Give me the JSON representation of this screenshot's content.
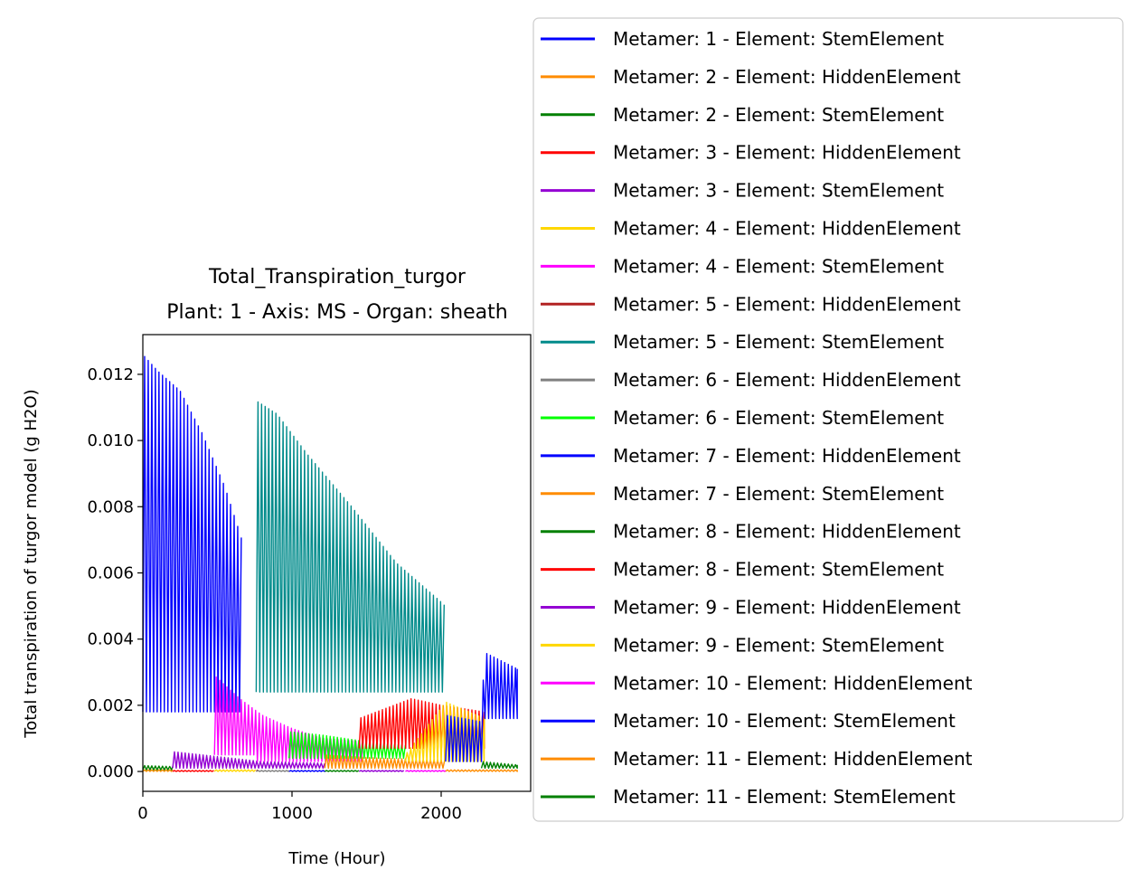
{
  "chart_data": {
    "type": "line",
    "title": "Total_Transpiration_turgor",
    "subtitle": "Plant: 1 - Axis: MS - Organ: sheath",
    "xlabel": "Time (Hour)",
    "ylabel": "Total transpiration of turgor model (g H2O)",
    "xlim": [
      0,
      2600
    ],
    "ylim": [
      -0.0006,
      0.0132
    ],
    "xticks": [
      0,
      1000,
      2000
    ],
    "xtick_labels": [
      "0",
      "1000",
      "2000"
    ],
    "yticks": [
      0.0,
      0.002,
      0.004,
      0.006,
      0.008,
      0.01,
      0.012
    ],
    "ytick_labels": [
      "0.000",
      "0.002",
      "0.004",
      "0.006",
      "0.008",
      "0.010",
      "0.012"
    ],
    "grid": false,
    "legend_position": "right of plot",
    "series": [
      {
        "name": "Metamer: 1 - Element: StemElement",
        "color": "#0000ff",
        "range": [
          0,
          665
        ],
        "night": [
          [
            0,
            0.0018
          ],
          [
            665,
            0.0018
          ]
        ],
        "day": [
          [
            0,
            0.0126
          ],
          [
            100,
            0.0121
          ],
          [
            250,
            0.0115
          ],
          [
            400,
            0.0102
          ],
          [
            550,
            0.0086
          ],
          [
            665,
            0.007
          ]
        ]
      },
      {
        "name": "Metamer: 2 - Element: HiddenElement",
        "color": "#ff8c00",
        "range": [
          0,
          200
        ],
        "night": [
          [
            0,
            0.0
          ],
          [
            200,
            0.0
          ]
        ],
        "day": [
          [
            0,
            5e-05
          ],
          [
            200,
            5e-05
          ]
        ]
      },
      {
        "name": "Metamer: 2 - Element: StemElement",
        "color": "#008000",
        "range": [
          0,
          200
        ],
        "night": [
          [
            0,
            5e-05
          ],
          [
            200,
            5e-05
          ]
        ],
        "day": [
          [
            0,
            0.00018
          ],
          [
            200,
            0.00015
          ]
        ]
      },
      {
        "name": "Metamer: 3 - Element: HiddenElement",
        "color": "#ff0000",
        "range": [
          200,
          480
        ],
        "night": [
          [
            200,
            0.0
          ],
          [
            480,
            0.0
          ]
        ],
        "day": [
          [
            200,
            3e-05
          ],
          [
            480,
            3e-05
          ]
        ]
      },
      {
        "name": "Metamer: 3 - Element: StemElement",
        "color": "#9400d3",
        "range": [
          200,
          1220
        ],
        "night": [
          [
            200,
            0.0001
          ],
          [
            1220,
            0.0001
          ]
        ],
        "day": [
          [
            200,
            0.0006
          ],
          [
            500,
            0.00045
          ],
          [
            800,
            0.0003
          ],
          [
            1220,
            0.00025
          ]
        ]
      },
      {
        "name": "Metamer: 4 - Element: HiddenElement",
        "color": "#ffd700",
        "range": [
          480,
          760
        ],
        "night": [
          [
            480,
            0.0
          ],
          [
            760,
            0.0
          ]
        ],
        "day": [
          [
            480,
            5e-05
          ],
          [
            760,
            5e-05
          ]
        ]
      },
      {
        "name": "Metamer: 4 - Element: StemElement",
        "color": "#ff00ff",
        "range": [
          480,
          1480
        ],
        "night": [
          [
            480,
            0.0005
          ],
          [
            760,
            0.0005
          ],
          [
            761,
            0.0003
          ],
          [
            1480,
            0.0003
          ]
        ],
        "day": [
          [
            480,
            0.0029
          ],
          [
            650,
            0.0022
          ],
          [
            800,
            0.0017
          ],
          [
            1000,
            0.0013
          ],
          [
            1200,
            0.001
          ],
          [
            1480,
            0.0009
          ]
        ]
      },
      {
        "name": "Metamer: 5 - Element: HiddenElement",
        "color": "#b22222",
        "range": [
          760,
          770
        ],
        "night": [
          [
            760,
            0.0
          ],
          [
            770,
            0.0
          ]
        ],
        "day": [
          [
            760,
            5e-05
          ],
          [
            770,
            5e-05
          ]
        ]
      },
      {
        "name": "Metamer: 5 - Element: StemElement",
        "color": "#008b8b",
        "range": [
          760,
          2030
        ],
        "night": [
          [
            760,
            0.0024
          ],
          [
            2030,
            0.0024
          ]
        ],
        "day": [
          [
            760,
            0.0112
          ],
          [
            900,
            0.0108
          ],
          [
            1100,
            0.0096
          ],
          [
            1400,
            0.008
          ],
          [
            1700,
            0.0063
          ],
          [
            2030,
            0.005
          ]
        ]
      },
      {
        "name": "Metamer: 6 - Element: HiddenElement",
        "color": "#808080",
        "range": [
          760,
          980
        ],
        "night": [
          [
            760,
            0.0
          ],
          [
            980,
            0.0
          ]
        ],
        "day": [
          [
            760,
            3e-05
          ],
          [
            980,
            3e-05
          ]
        ]
      },
      {
        "name": "Metamer: 6 - Element: StemElement",
        "color": "#00ff00",
        "range": [
          980,
          1760
        ],
        "night": [
          [
            980,
            0.0004
          ],
          [
            1760,
            0.0004
          ]
        ],
        "day": [
          [
            980,
            0.0012
          ],
          [
            1200,
            0.0011
          ],
          [
            1500,
            0.0009
          ],
          [
            1760,
            0.0008
          ]
        ]
      },
      {
        "name": "Metamer: 7 - Element: HiddenElement",
        "color": "#0000ff",
        "range": [
          980,
          1220
        ],
        "night": [
          [
            980,
            0.0
          ],
          [
            1220,
            0.0
          ]
        ],
        "day": [
          [
            980,
            3e-05
          ],
          [
            1220,
            3e-05
          ]
        ]
      },
      {
        "name": "Metamer: 7 - Element: StemElement",
        "color": "#ff8c00",
        "range": [
          1220,
          2030
        ],
        "night": [
          [
            1220,
            0.0001
          ],
          [
            2030,
            0.0001
          ]
        ],
        "day": [
          [
            1220,
            0.0005
          ],
          [
            1600,
            0.0004
          ],
          [
            2030,
            0.00035
          ]
        ]
      },
      {
        "name": "Metamer: 8 - Element: HiddenElement",
        "color": "#008000",
        "range": [
          1220,
          1450
        ],
        "night": [
          [
            1220,
            0.0
          ],
          [
            1450,
            0.0
          ]
        ],
        "day": [
          [
            1220,
            3e-05
          ],
          [
            1450,
            3e-05
          ]
        ]
      },
      {
        "name": "Metamer: 8 - Element: StemElement",
        "color": "#ff0000",
        "range": [
          1450,
          2290
        ],
        "night": [
          [
            1450,
            0.0007
          ],
          [
            2290,
            0.0007
          ]
        ],
        "day": [
          [
            1450,
            0.0016
          ],
          [
            1800,
            0.0022
          ],
          [
            2000,
            0.002
          ],
          [
            2290,
            0.0018
          ]
        ]
      },
      {
        "name": "Metamer: 9 - Element: HiddenElement",
        "color": "#9400d3",
        "range": [
          1450,
          1760
        ],
        "night": [
          [
            1450,
            0.0
          ],
          [
            1760,
            0.0
          ]
        ],
        "day": [
          [
            1450,
            3e-05
          ],
          [
            1760,
            3e-05
          ]
        ]
      },
      {
        "name": "Metamer: 9 - Element: StemElement",
        "color": "#ffd700",
        "range": [
          1760,
          2290
        ],
        "night": [
          [
            1760,
            0.0003
          ],
          [
            2290,
            0.0003
          ]
        ],
        "day": [
          [
            1760,
            0.0005
          ],
          [
            2030,
            0.0021
          ],
          [
            2290,
            0.0016
          ]
        ]
      },
      {
        "name": "Metamer: 10 - Element: HiddenElement",
        "color": "#ff00ff",
        "range": [
          1760,
          2030
        ],
        "night": [
          [
            1760,
            0.0
          ],
          [
            2030,
            0.0
          ]
        ],
        "day": [
          [
            1760,
            3e-05
          ],
          [
            2030,
            3e-05
          ]
        ]
      },
      {
        "name": "Metamer: 10 - Element: StemElement",
        "color": "#0000ff",
        "range": [
          2030,
          2510
        ],
        "night": [
          [
            2030,
            0.0003
          ],
          [
            2270,
            0.0003
          ],
          [
            2271,
            0.0016
          ],
          [
            2510,
            0.0016
          ]
        ],
        "day": [
          [
            2030,
            0.0017
          ],
          [
            2270,
            0.0015
          ],
          [
            2290,
            0.0036
          ],
          [
            2510,
            0.0031
          ]
        ]
      },
      {
        "name": "Metamer: 11 - Element: HiddenElement",
        "color": "#ff8c00",
        "range": [
          2030,
          2510
        ],
        "night": [
          [
            2030,
            0.0
          ],
          [
            2510,
            0.0
          ]
        ],
        "day": [
          [
            2030,
            5e-05
          ],
          [
            2510,
            5e-05
          ]
        ]
      },
      {
        "name": "Metamer: 11 - Element: StemElement",
        "color": "#008000",
        "range": [
          2270,
          2510
        ],
        "night": [
          [
            2270,
            0.0001
          ],
          [
            2510,
            0.0001
          ]
        ],
        "day": [
          [
            2270,
            0.0003
          ],
          [
            2510,
            0.0002
          ]
        ]
      }
    ]
  }
}
